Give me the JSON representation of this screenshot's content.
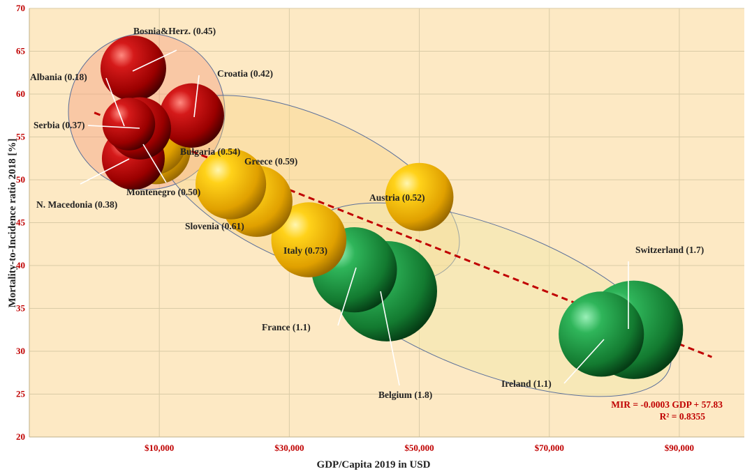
{
  "chart_data": {
    "type": "scatter",
    "variant": "bubble",
    "title": "",
    "xlabel": "GDP/Capita 2019 in USD",
    "ylabel": "Mortality-to-Incidence  ratio 2018 [%]",
    "xlim": [
      -10000,
      100000
    ],
    "ylim": [
      20,
      70
    ],
    "x_ticks": [
      10000,
      30000,
      50000,
      70000,
      90000
    ],
    "x_tick_labels": [
      "$10,000",
      "$30,000",
      "$50,000",
      "$70,000",
      "$90,000"
    ],
    "y_ticks": [
      20,
      25,
      30,
      35,
      40,
      45,
      50,
      55,
      60,
      65,
      70
    ],
    "y_tick_labels": [
      "20",
      "25",
      "30",
      "35",
      "40",
      "45",
      "50",
      "55",
      "60",
      "65",
      "70"
    ],
    "grid": true,
    "background_color": "#fde9c4",
    "trendline": {
      "equation": "MIR = -0.0003 GDP + 57.83",
      "r2": "R² = 0.8355",
      "color": "#c00000",
      "style": "dashed"
    },
    "colors": {
      "red": "#c00000",
      "yellow": "#f4b400",
      "green": "#1e8a3a"
    },
    "points": [
      {
        "label": "Bosnia&Herz. (0.45)",
        "x": 6000,
        "y": 63,
        "size": 0.45,
        "group": "red"
      },
      {
        "label": "Croatia (0.42)",
        "x": 15000,
        "y": 57.5,
        "size": 0.42,
        "group": "red"
      },
      {
        "label": "Albania (0.18)",
        "x": 5300,
        "y": 56.5,
        "size": 0.18,
        "group": "red"
      },
      {
        "label": "Serbia (0.37)",
        "x": 7000,
        "y": 56,
        "size": 0.37,
        "group": "red"
      },
      {
        "label": "Montenegro (0.50)",
        "x": 9000,
        "y": 54.5,
        "size": 0.5,
        "group": "yellow"
      },
      {
        "label": "N. Macedonia (0.38)",
        "x": 6000,
        "y": 52.5,
        "size": 0.38,
        "group": "red"
      },
      {
        "label": "Bulgaria (0.54)",
        "x": 9500,
        "y": 53.5,
        "size": 0.54,
        "group": "yellow"
      },
      {
        "label": "Greece (0.59)",
        "x": 21000,
        "y": 49.5,
        "size": 0.59,
        "group": "yellow"
      },
      {
        "label": "Slovenia (0.61)",
        "x": 25000,
        "y": 47.5,
        "size": 0.61,
        "group": "yellow"
      },
      {
        "label": "Austria (0.52)",
        "x": 50000,
        "y": 48,
        "size": 0.52,
        "group": "yellow"
      },
      {
        "label": "Italy (0.73)",
        "x": 33000,
        "y": 43,
        "size": 0.73,
        "group": "yellow"
      },
      {
        "label": "France (1.1)",
        "x": 40000,
        "y": 39.5,
        "size": 1.1,
        "group": "green"
      },
      {
        "label": "Belgium (1.8)",
        "x": 45000,
        "y": 37,
        "size": 1.8,
        "group": "green"
      },
      {
        "label": "Switzerland (1.7)",
        "x": 83000,
        "y": 32.5,
        "size": 1.7,
        "group": "green"
      },
      {
        "label": "Ireland (1.1)",
        "x": 78000,
        "y": 32,
        "size": 1.1,
        "group": "green"
      }
    ]
  }
}
